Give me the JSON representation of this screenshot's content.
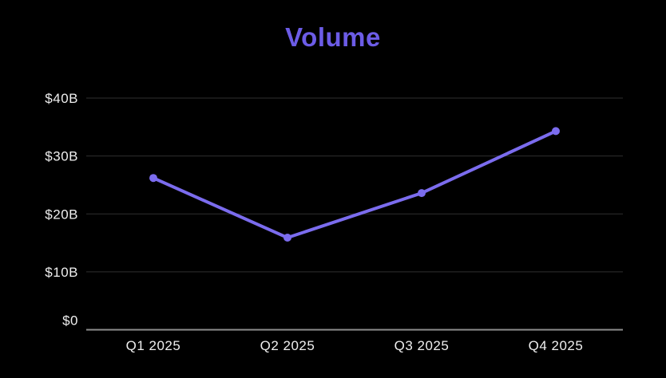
{
  "chart": {
    "title": "Volume"
  },
  "chart_data": {
    "type": "line",
    "title": "Volume",
    "categories": [
      "Q1 2025",
      "Q2 2025",
      "Q3 2025",
      "Q4 2025"
    ],
    "series": [
      {
        "name": "Volume",
        "values": [
          26.2,
          15.9,
          23.6,
          34.3
        ]
      }
    ],
    "xlabel": "",
    "ylabel": "",
    "ylim": [
      0,
      40
    ],
    "yticks": [
      {
        "value": 0,
        "label": "$0"
      },
      {
        "value": 10,
        "label": "$10B"
      },
      {
        "value": 20,
        "label": "$20B"
      },
      {
        "value": 30,
        "label": "$30B"
      },
      {
        "value": 40,
        "label": "$40B"
      }
    ],
    "grid": true,
    "legend": false,
    "colors": {
      "background": "#000000",
      "line": "#7b6cee",
      "marker": "#7b6cee",
      "gridline": "#2f2f2f",
      "axis_line": "#8e8e8e",
      "tick_text": "#efefef",
      "title": "#6c5ce7"
    }
  }
}
